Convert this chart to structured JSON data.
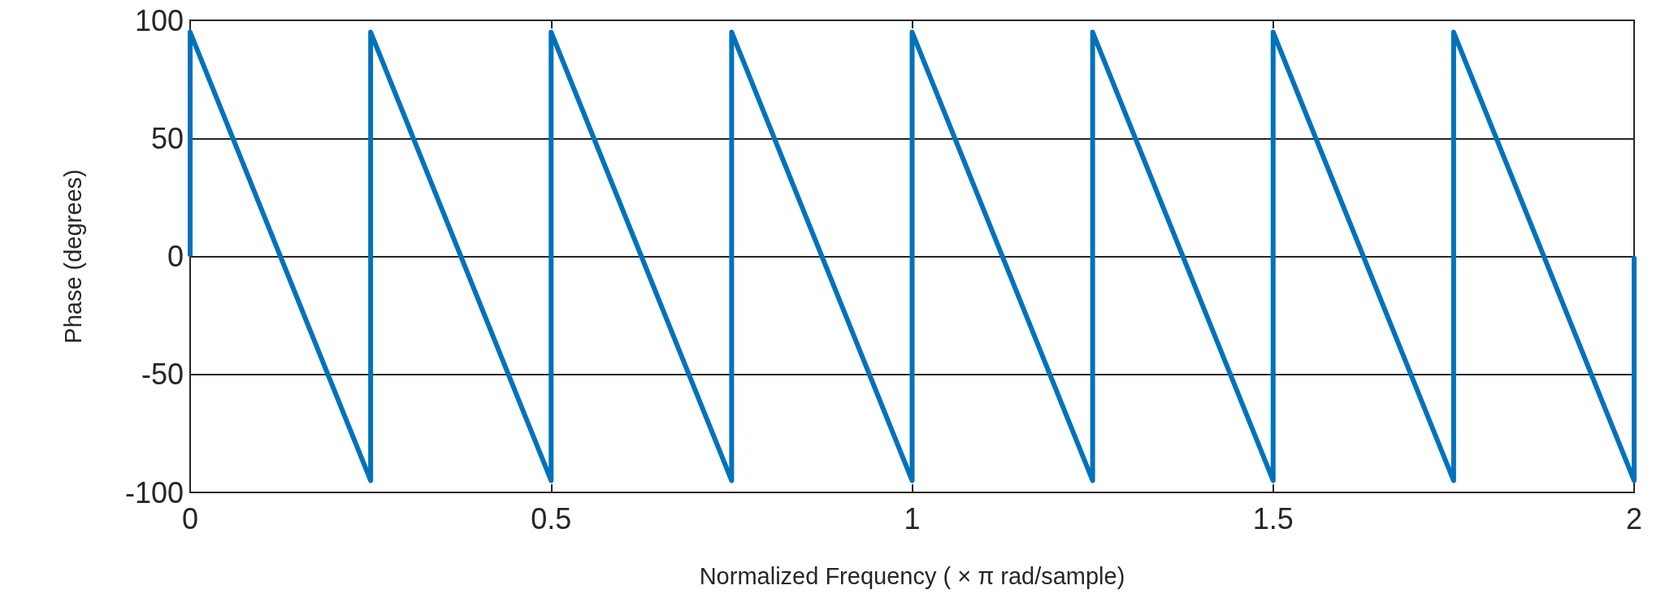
{
  "chart_data": {
    "type": "line",
    "xlabel": "Normalized Frequency ( × π rad/sample)",
    "ylabel": "Phase (degrees)",
    "x": [
      0,
      0,
      0.25,
      0.25,
      0.5,
      0.5,
      0.75,
      0.75,
      1,
      1,
      1.25,
      1.25,
      1.5,
      1.5,
      1.75,
      1.75,
      2,
      2
    ],
    "series": [
      {
        "color": "#0072bd",
        "values": [
          0,
          95,
          -95,
          95,
          -95,
          95,
          -95,
          95,
          -95,
          95,
          -95,
          95,
          -95,
          95,
          -95,
          95,
          -95,
          0
        ]
      }
    ],
    "xlim": [
      0,
      2
    ],
    "xticks": [
      0,
      0.5,
      1,
      1.5,
      2
    ],
    "ylim": [
      -100,
      100
    ],
    "yticks": [
      -100,
      -50,
      0,
      50,
      100
    ],
    "grid": "y",
    "marker": "none",
    "line_style": "solid"
  }
}
